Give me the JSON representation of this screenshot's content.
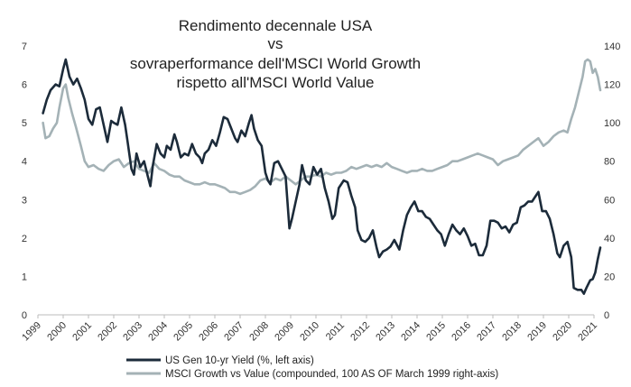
{
  "chart_data": {
    "type": "line",
    "title": [
      "Rendimento decennale USA",
      "vs",
      "sovraperformance dell'MSCI World Growth",
      "rispetto all'MSCI World Value"
    ],
    "x_range": [
      1999,
      2021
    ],
    "x_ticks": [
      "1999",
      "2000",
      "2001",
      "2002",
      "2003",
      "2004",
      "2005",
      "2006",
      "2007",
      "2008",
      "2009",
      "2010",
      "2011",
      "2012",
      "2013",
      "2014",
      "2015",
      "2016",
      "2017",
      "2018",
      "2019",
      "2020",
      "2021"
    ],
    "y_left": {
      "min": 0,
      "max": 7,
      "ticks": [
        "0",
        "1",
        "2",
        "3",
        "4",
        "5",
        "6",
        "7"
      ]
    },
    "y_right": {
      "min": 0,
      "max": 140,
      "ticks": [
        "0",
        "20",
        "40",
        "60",
        "80",
        "100",
        "120",
        "140"
      ]
    },
    "grid": false,
    "legend_position": "bottom",
    "series": [
      {
        "name": "US Gen 10-yr Yield (%, left axis)",
        "axis": "left",
        "color": "#1c2b3a",
        "points": [
          [
            1999.2,
            5.25
          ],
          [
            1999.35,
            5.6
          ],
          [
            1999.5,
            5.85
          ],
          [
            1999.7,
            6.0
          ],
          [
            1999.85,
            5.95
          ],
          [
            2000.0,
            6.4
          ],
          [
            2000.1,
            6.65
          ],
          [
            2000.25,
            6.2
          ],
          [
            2000.4,
            6.0
          ],
          [
            2000.55,
            6.15
          ],
          [
            2000.7,
            5.9
          ],
          [
            2000.85,
            5.6
          ],
          [
            2001.0,
            5.1
          ],
          [
            2001.15,
            4.95
          ],
          [
            2001.3,
            5.35
          ],
          [
            2001.45,
            5.4
          ],
          [
            2001.6,
            4.95
          ],
          [
            2001.75,
            4.5
          ],
          [
            2001.9,
            5.05
          ],
          [
            2002.0,
            5.0
          ],
          [
            2002.15,
            4.95
          ],
          [
            2002.3,
            5.4
          ],
          [
            2002.45,
            4.95
          ],
          [
            2002.55,
            4.5
          ],
          [
            2002.7,
            3.8
          ],
          [
            2002.8,
            3.65
          ],
          [
            2002.9,
            4.2
          ],
          [
            2003.05,
            3.85
          ],
          [
            2003.2,
            4.0
          ],
          [
            2003.35,
            3.6
          ],
          [
            2003.45,
            3.35
          ],
          [
            2003.55,
            3.9
          ],
          [
            2003.7,
            4.45
          ],
          [
            2003.85,
            4.2
          ],
          [
            2004.0,
            4.1
          ],
          [
            2004.1,
            4.4
          ],
          [
            2004.25,
            4.3
          ],
          [
            2004.4,
            4.7
          ],
          [
            2004.5,
            4.5
          ],
          [
            2004.65,
            4.1
          ],
          [
            2004.8,
            4.2
          ],
          [
            2004.95,
            4.15
          ],
          [
            2005.1,
            4.45
          ],
          [
            2005.25,
            4.2
          ],
          [
            2005.4,
            4.1
          ],
          [
            2005.5,
            3.95
          ],
          [
            2005.6,
            4.2
          ],
          [
            2005.75,
            4.3
          ],
          [
            2005.9,
            4.55
          ],
          [
            2006.05,
            4.4
          ],
          [
            2006.2,
            4.75
          ],
          [
            2006.35,
            5.15
          ],
          [
            2006.5,
            5.1
          ],
          [
            2006.65,
            4.85
          ],
          [
            2006.8,
            4.6
          ],
          [
            2006.9,
            4.5
          ],
          [
            2007.05,
            4.8
          ],
          [
            2007.2,
            4.65
          ],
          [
            2007.35,
            5.0
          ],
          [
            2007.45,
            5.2
          ],
          [
            2007.55,
            4.85
          ],
          [
            2007.7,
            4.55
          ],
          [
            2007.85,
            4.4
          ],
          [
            2008.0,
            3.7
          ],
          [
            2008.1,
            3.5
          ],
          [
            2008.2,
            3.4
          ],
          [
            2008.35,
            3.95
          ],
          [
            2008.5,
            4.0
          ],
          [
            2008.65,
            3.8
          ],
          [
            2008.8,
            3.6
          ],
          [
            2008.95,
            2.25
          ],
          [
            2009.05,
            2.5
          ],
          [
            2009.2,
            2.95
          ],
          [
            2009.35,
            3.4
          ],
          [
            2009.45,
            3.9
          ],
          [
            2009.6,
            3.5
          ],
          [
            2009.75,
            3.4
          ],
          [
            2009.9,
            3.85
          ],
          [
            2010.05,
            3.65
          ],
          [
            2010.2,
            3.8
          ],
          [
            2010.35,
            3.3
          ],
          [
            2010.5,
            2.95
          ],
          [
            2010.65,
            2.5
          ],
          [
            2010.75,
            2.6
          ],
          [
            2010.9,
            3.3
          ],
          [
            2011.1,
            3.5
          ],
          [
            2011.25,
            3.45
          ],
          [
            2011.4,
            3.1
          ],
          [
            2011.55,
            2.8
          ],
          [
            2011.65,
            2.2
          ],
          [
            2011.8,
            1.95
          ],
          [
            2011.95,
            1.9
          ],
          [
            2012.1,
            2.0
          ],
          [
            2012.25,
            2.2
          ],
          [
            2012.4,
            1.75
          ],
          [
            2012.5,
            1.5
          ],
          [
            2012.65,
            1.65
          ],
          [
            2012.8,
            1.7
          ],
          [
            2012.95,
            1.78
          ],
          [
            2013.1,
            1.95
          ],
          [
            2013.3,
            1.7
          ],
          [
            2013.45,
            2.2
          ],
          [
            2013.6,
            2.6
          ],
          [
            2013.75,
            2.8
          ],
          [
            2013.9,
            2.95
          ],
          [
            2014.05,
            2.7
          ],
          [
            2014.2,
            2.7
          ],
          [
            2014.35,
            2.55
          ],
          [
            2014.5,
            2.5
          ],
          [
            2014.65,
            2.35
          ],
          [
            2014.8,
            2.2
          ],
          [
            2014.95,
            2.1
          ],
          [
            2015.1,
            1.8
          ],
          [
            2015.25,
            2.1
          ],
          [
            2015.4,
            2.35
          ],
          [
            2015.55,
            2.2
          ],
          [
            2015.7,
            2.1
          ],
          [
            2015.85,
            2.25
          ],
          [
            2016.0,
            2.05
          ],
          [
            2016.15,
            1.8
          ],
          [
            2016.3,
            1.85
          ],
          [
            2016.45,
            1.55
          ],
          [
            2016.6,
            1.55
          ],
          [
            2016.75,
            1.8
          ],
          [
            2016.9,
            2.45
          ],
          [
            2017.05,
            2.45
          ],
          [
            2017.2,
            2.4
          ],
          [
            2017.35,
            2.25
          ],
          [
            2017.5,
            2.3
          ],
          [
            2017.65,
            2.15
          ],
          [
            2017.8,
            2.35
          ],
          [
            2017.95,
            2.4
          ],
          [
            2018.1,
            2.8
          ],
          [
            2018.25,
            2.85
          ],
          [
            2018.4,
            2.95
          ],
          [
            2018.55,
            2.95
          ],
          [
            2018.7,
            3.1
          ],
          [
            2018.8,
            3.2
          ],
          [
            2018.95,
            2.7
          ],
          [
            2019.1,
            2.7
          ],
          [
            2019.25,
            2.5
          ],
          [
            2019.4,
            2.1
          ],
          [
            2019.55,
            1.6
          ],
          [
            2019.65,
            1.5
          ],
          [
            2019.8,
            1.8
          ],
          [
            2019.95,
            1.9
          ],
          [
            2020.1,
            1.5
          ],
          [
            2020.2,
            0.7
          ],
          [
            2020.35,
            0.65
          ],
          [
            2020.5,
            0.65
          ],
          [
            2020.6,
            0.55
          ],
          [
            2020.7,
            0.7
          ],
          [
            2020.85,
            0.9
          ],
          [
            2020.95,
            0.93
          ],
          [
            2021.05,
            1.1
          ],
          [
            2021.15,
            1.45
          ],
          [
            2021.25,
            1.75
          ]
        ]
      },
      {
        "name": "MSCI Growth vs Value (compounded, 100 AS OF March 1999 right-axis)",
        "axis": "right",
        "color": "#a4b2b6",
        "points": [
          [
            1999.2,
            100
          ],
          [
            1999.3,
            92
          ],
          [
            1999.45,
            93
          ],
          [
            1999.6,
            97
          ],
          [
            1999.75,
            100
          ],
          [
            1999.85,
            108
          ],
          [
            2000.0,
            118
          ],
          [
            2000.1,
            120
          ],
          [
            2000.2,
            113
          ],
          [
            2000.35,
            105
          ],
          [
            2000.5,
            98
          ],
          [
            2000.7,
            88
          ],
          [
            2000.85,
            80
          ],
          [
            2001.0,
            77
          ],
          [
            2001.2,
            78
          ],
          [
            2001.4,
            76
          ],
          [
            2001.6,
            75
          ],
          [
            2001.8,
            78
          ],
          [
            2002.0,
            80
          ],
          [
            2002.2,
            81
          ],
          [
            2002.4,
            77
          ],
          [
            2002.6,
            79
          ],
          [
            2002.8,
            80
          ],
          [
            2003.0,
            76
          ],
          [
            2003.2,
            75
          ],
          [
            2003.4,
            74
          ],
          [
            2003.6,
            79
          ],
          [
            2003.8,
            76
          ],
          [
            2004.0,
            75
          ],
          [
            2004.2,
            73
          ],
          [
            2004.4,
            72
          ],
          [
            2004.6,
            72
          ],
          [
            2004.8,
            70
          ],
          [
            2005.0,
            69
          ],
          [
            2005.2,
            68
          ],
          [
            2005.4,
            68
          ],
          [
            2005.6,
            69
          ],
          [
            2005.8,
            68
          ],
          [
            2006.0,
            68
          ],
          [
            2006.2,
            67
          ],
          [
            2006.4,
            66
          ],
          [
            2006.6,
            64
          ],
          [
            2006.8,
            64
          ],
          [
            2007.0,
            63
          ],
          [
            2007.2,
            64
          ],
          [
            2007.4,
            65
          ],
          [
            2007.6,
            67
          ],
          [
            2007.8,
            70
          ],
          [
            2008.0,
            71
          ],
          [
            2008.2,
            69
          ],
          [
            2008.4,
            71
          ],
          [
            2008.6,
            70
          ],
          [
            2008.8,
            72
          ],
          [
            2009.0,
            70
          ],
          [
            2009.2,
            68
          ],
          [
            2009.4,
            70
          ],
          [
            2009.6,
            72
          ],
          [
            2009.8,
            72
          ],
          [
            2010.0,
            73
          ],
          [
            2010.2,
            72
          ],
          [
            2010.4,
            74
          ],
          [
            2010.6,
            73
          ],
          [
            2010.8,
            74
          ],
          [
            2011.0,
            74
          ],
          [
            2011.2,
            75
          ],
          [
            2011.4,
            77
          ],
          [
            2011.6,
            76
          ],
          [
            2011.8,
            77
          ],
          [
            2012.0,
            78
          ],
          [
            2012.2,
            77
          ],
          [
            2012.4,
            78
          ],
          [
            2012.6,
            77
          ],
          [
            2012.8,
            79
          ],
          [
            2013.0,
            77
          ],
          [
            2013.2,
            76
          ],
          [
            2013.4,
            75
          ],
          [
            2013.6,
            74
          ],
          [
            2013.8,
            75
          ],
          [
            2014.0,
            75
          ],
          [
            2014.2,
            76
          ],
          [
            2014.4,
            75
          ],
          [
            2014.6,
            75
          ],
          [
            2014.8,
            76
          ],
          [
            2015.0,
            77
          ],
          [
            2015.2,
            78
          ],
          [
            2015.4,
            80
          ],
          [
            2015.6,
            80
          ],
          [
            2015.8,
            81
          ],
          [
            2016.0,
            82
          ],
          [
            2016.2,
            83
          ],
          [
            2016.4,
            84
          ],
          [
            2016.6,
            83
          ],
          [
            2016.8,
            82
          ],
          [
            2017.0,
            81
          ],
          [
            2017.2,
            78
          ],
          [
            2017.4,
            80
          ],
          [
            2017.6,
            81
          ],
          [
            2017.8,
            82
          ],
          [
            2018.0,
            83
          ],
          [
            2018.2,
            86
          ],
          [
            2018.4,
            88
          ],
          [
            2018.6,
            90
          ],
          [
            2018.8,
            92
          ],
          [
            2019.0,
            88
          ],
          [
            2019.2,
            90
          ],
          [
            2019.4,
            93
          ],
          [
            2019.6,
            95
          ],
          [
            2019.8,
            96
          ],
          [
            2019.95,
            95
          ],
          [
            2020.1,
            102
          ],
          [
            2020.25,
            108
          ],
          [
            2020.4,
            116
          ],
          [
            2020.55,
            124
          ],
          [
            2020.65,
            132
          ],
          [
            2020.75,
            133
          ],
          [
            2020.85,
            132
          ],
          [
            2020.95,
            126
          ],
          [
            2021.05,
            128
          ],
          [
            2021.15,
            124
          ],
          [
            2021.25,
            117
          ]
        ]
      }
    ]
  }
}
